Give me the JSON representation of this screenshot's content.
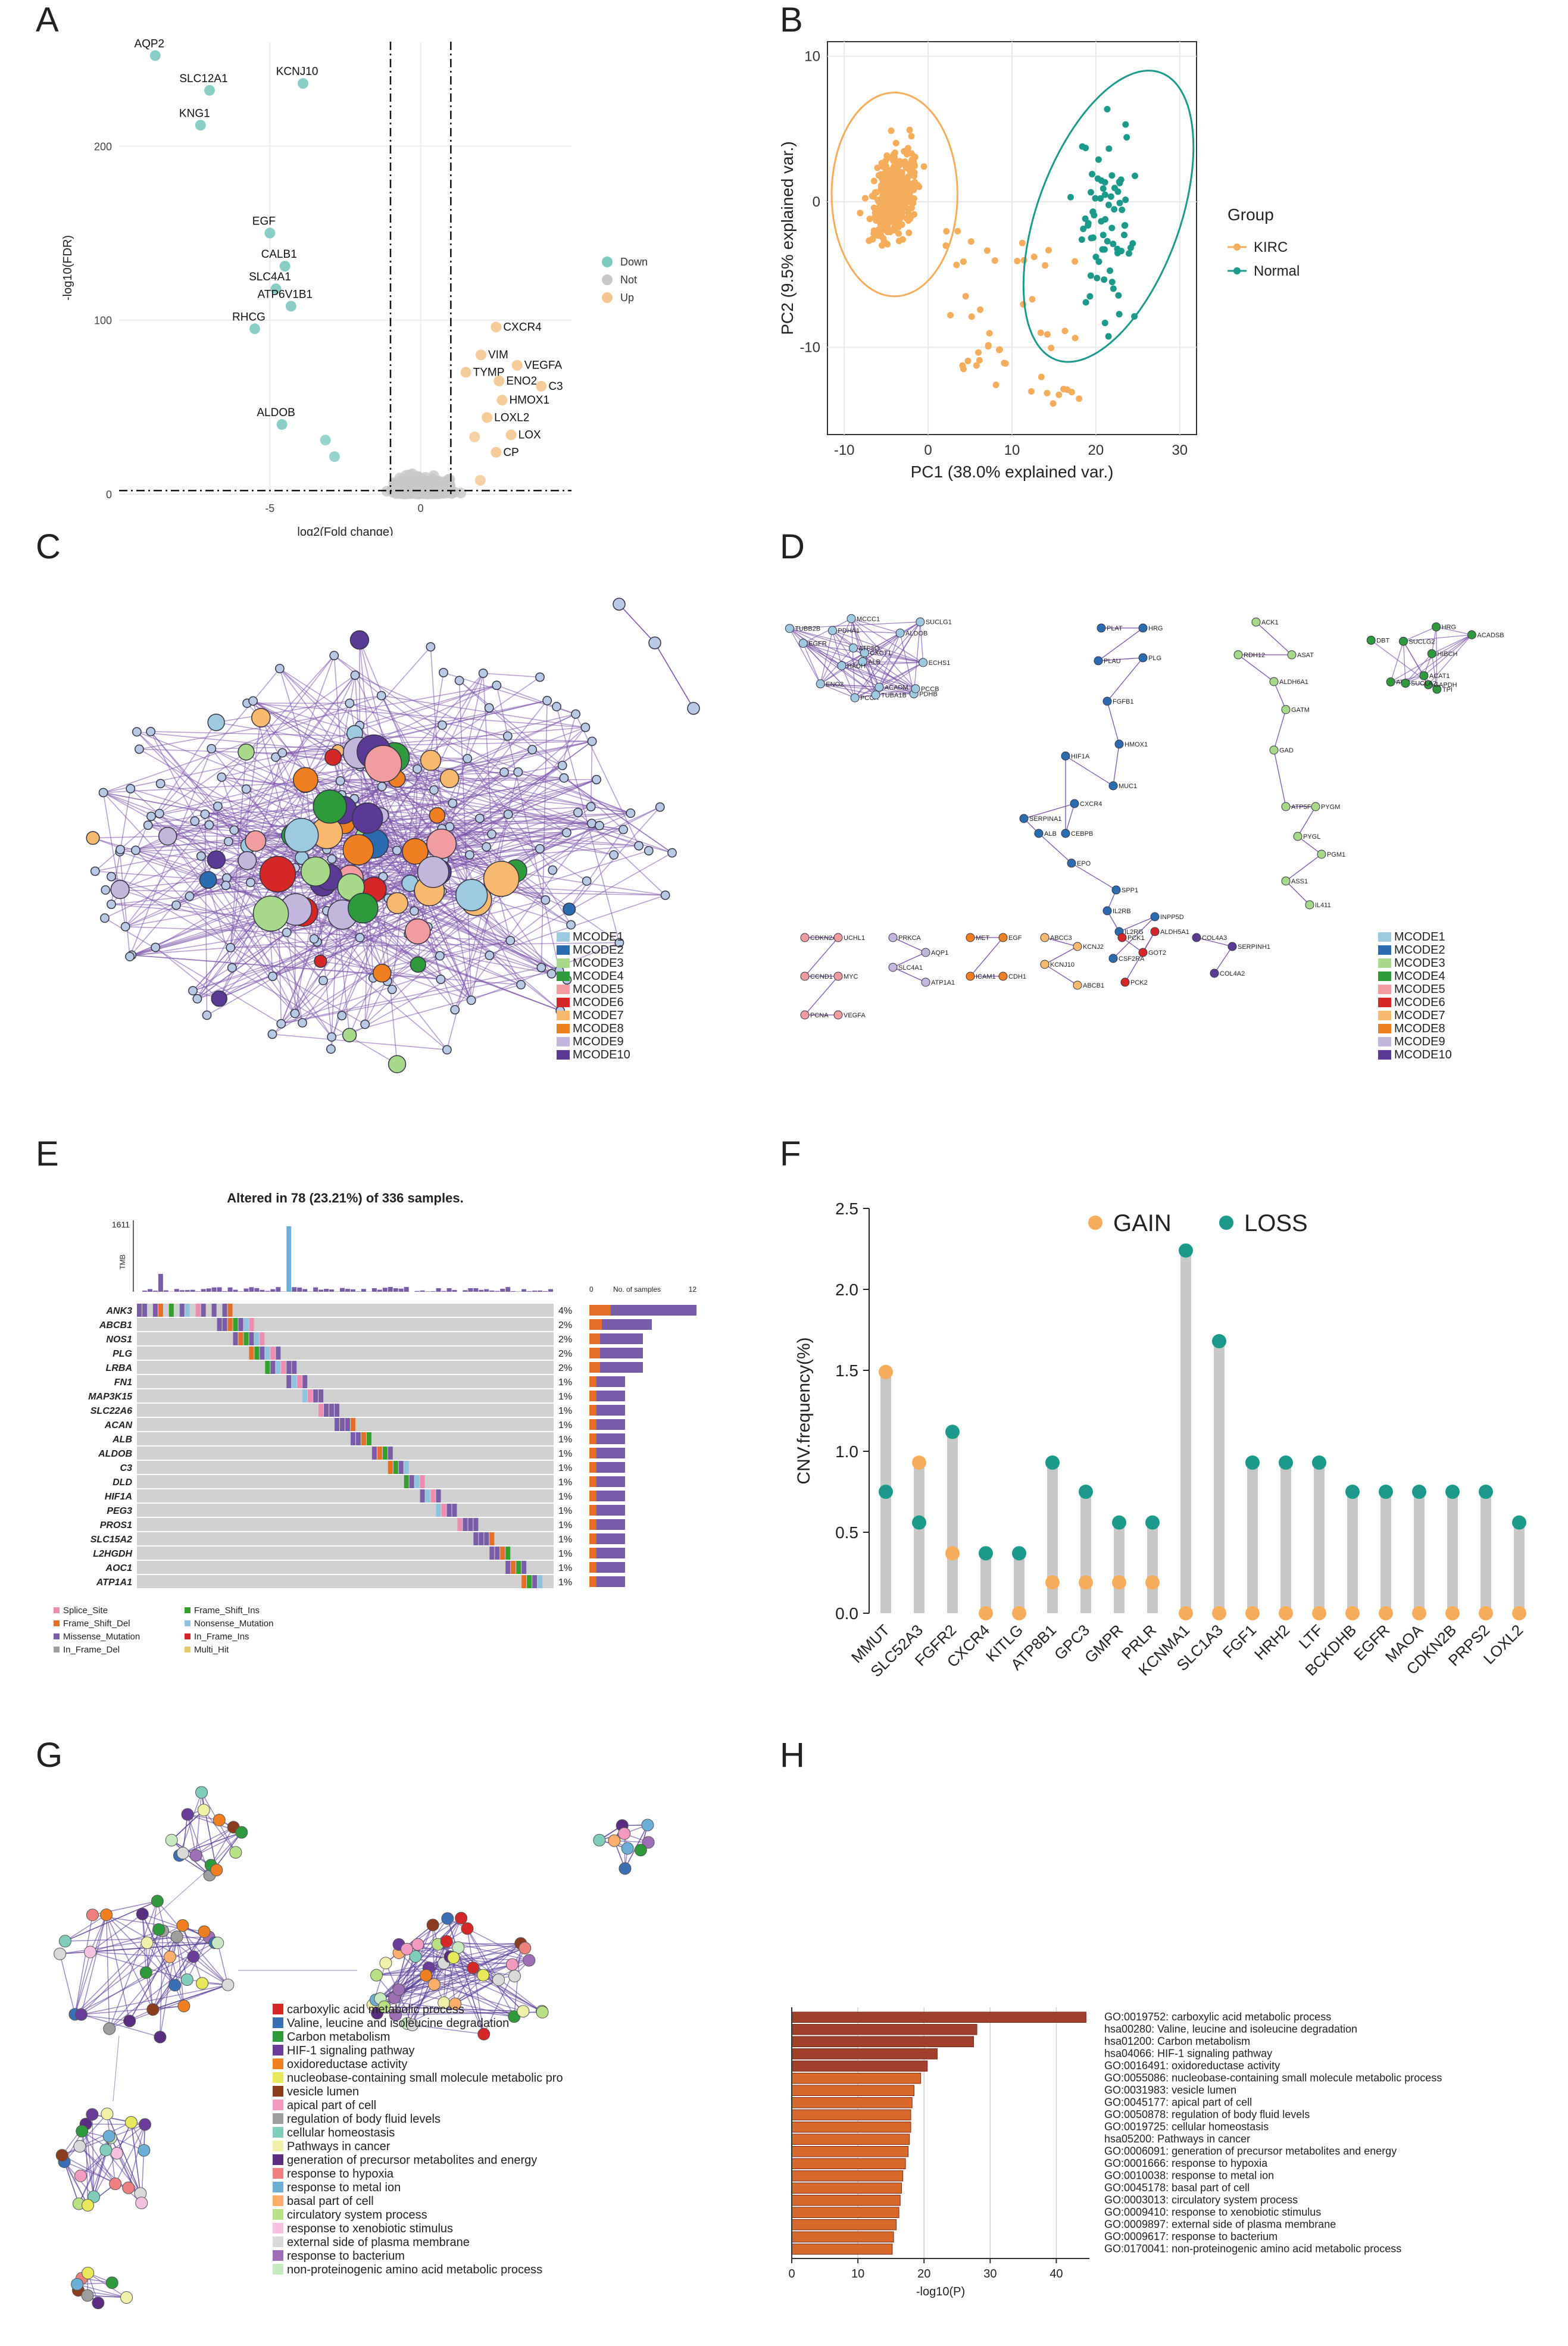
{
  "panels": {
    "a": "A",
    "b": "B",
    "c": "C",
    "d": "D",
    "e": "E",
    "f": "F",
    "g": "G",
    "h": "H"
  },
  "chart_data": [
    {
      "id": "A",
      "type": "scatter",
      "title": "",
      "xlabel": "log2(Fold change)",
      "ylabel": "-log10(FDR)",
      "xlim": [
        -10,
        5
      ],
      "ylim": [
        0,
        260
      ],
      "xticks": [
        -5,
        0
      ],
      "yticks": [
        0,
        100,
        200
      ],
      "legend": [
        "Down",
        "Not",
        "Up"
      ],
      "colors": {
        "Down": "#7cc9c0",
        "Not": "#c8c8c8",
        "Up": "#f5c58f"
      },
      "threshold_x": [
        -1,
        1
      ],
      "threshold_y": 2,
      "labeled_points": [
        {
          "label": "AQP2",
          "x": -8.8,
          "y": 252,
          "group": "Down"
        },
        {
          "label": "SLC12A1",
          "x": -7.0,
          "y": 232,
          "group": "Down"
        },
        {
          "label": "KCNJ10",
          "x": -3.9,
          "y": 236,
          "group": "Down"
        },
        {
          "label": "KNG1",
          "x": -7.3,
          "y": 212,
          "group": "Down"
        },
        {
          "label": "EGF",
          "x": -5.0,
          "y": 150,
          "group": "Down"
        },
        {
          "label": "CALB1",
          "x": -4.5,
          "y": 131,
          "group": "Down"
        },
        {
          "label": "SLC4A1",
          "x": -4.8,
          "y": 118,
          "group": "Down"
        },
        {
          "label": "ATP6V1B1",
          "x": -4.3,
          "y": 108,
          "group": "Down"
        },
        {
          "label": "RHCG",
          "x": -5.5,
          "y": 95,
          "group": "Down"
        },
        {
          "label": "ALDOB",
          "x": -4.6,
          "y": 40,
          "group": "Down"
        },
        {
          "label": "CXCR4",
          "x": 2.5,
          "y": 96,
          "group": "Up"
        },
        {
          "label": "VIM",
          "x": 2.0,
          "y": 80,
          "group": "Up"
        },
        {
          "label": "VEGFA",
          "x": 3.2,
          "y": 74,
          "group": "Up"
        },
        {
          "label": "TYMP",
          "x": 1.5,
          "y": 70,
          "group": "Up"
        },
        {
          "label": "ENO2",
          "x": 2.6,
          "y": 65,
          "group": "Up"
        },
        {
          "label": "C3",
          "x": 4.0,
          "y": 62,
          "group": "Up"
        },
        {
          "label": "HMOX1",
          "x": 2.7,
          "y": 54,
          "group": "Up"
        },
        {
          "label": "LOXL2",
          "x": 2.2,
          "y": 44,
          "group": "Up"
        },
        {
          "label": "LOX",
          "x": 3.0,
          "y": 34,
          "group": "Up"
        },
        {
          "label": "CP",
          "x": 2.5,
          "y": 24,
          "group": "Up"
        }
      ]
    },
    {
      "id": "B",
      "type": "scatter",
      "title": "",
      "xlabel": "PC1 (38.0% explained var.)",
      "ylabel": "PC2 (9.5% explained var.)",
      "xlim": [
        -12,
        32
      ],
      "ylim": [
        -16,
        11
      ],
      "xticks": [
        -10,
        0,
        10,
        20,
        30
      ],
      "yticks": [
        -10,
        0,
        10
      ],
      "legend_title": "Group",
      "legend": [
        "KIRC",
        "Normal"
      ],
      "colors": {
        "KIRC": "#f5ad5b",
        "Normal": "#1b998b"
      },
      "ellipses": [
        {
          "group": "KIRC",
          "cx": -4,
          "cy": 0.5,
          "rx": 7.5,
          "ry": 7
        },
        {
          "group": "Normal",
          "cx": 21.5,
          "cy": -1,
          "rx": 8.5,
          "ry": 10.5
        }
      ]
    },
    {
      "id": "E",
      "type": "heatmap",
      "title": "Altered in 78 (23.21%) of 336 samples.",
      "tmb_label": "TMB",
      "tmb_max": "1611",
      "samples_label": "No. of samples",
      "samples_ticks": [
        "0",
        "12"
      ],
      "genes": [
        "ANK3",
        "ABCB1",
        "NOS1",
        "PLG",
        "LRBA",
        "FN1",
        "MAP3K15",
        "SLC22A6",
        "ACAN",
        "ALB",
        "ALDOB",
        "C3",
        "DLD",
        "HIF1A",
        "PEG3",
        "PROS1",
        "SLC15A2",
        "L2HGDH",
        "AOC1",
        "ATP1A1"
      ],
      "percents": [
        "4%",
        "2%",
        "2%",
        "2%",
        "2%",
        "1%",
        "1%",
        "1%",
        "1%",
        "1%",
        "1%",
        "1%",
        "1%",
        "1%",
        "1%",
        "1%",
        "1%",
        "1%",
        "1%",
        "1%"
      ],
      "counts": [
        12,
        7,
        6,
        6,
        6,
        4,
        4,
        4,
        4,
        4,
        4,
        4,
        4,
        4,
        4,
        4,
        4,
        4,
        4,
        4
      ],
      "legend": [
        "Splice_Site",
        "Frame_Shift_Ins",
        "Frame_Shift_Del",
        "Nonsense_Mutation",
        "Missense_Mutation",
        "In_Frame_Ins",
        "In_Frame_Del",
        "Multi_Hit"
      ],
      "legend_colors": [
        "#f08cb0",
        "#33a02c",
        "#e66f28",
        "#8fc4e0",
        "#7a5da8",
        "#d62728",
        "#9e9e9e",
        "#e3c96b"
      ]
    },
    {
      "id": "F",
      "type": "scatter",
      "title": "",
      "ylabel": "CNV.frequency(%)",
      "ylim": [
        0,
        2.5
      ],
      "yticks": [
        0.0,
        0.5,
        1.0,
        1.5,
        2.0,
        2.5
      ],
      "legend": [
        "GAIN",
        "LOSS"
      ],
      "colors": {
        "GAIN": "#f5ad5b",
        "LOSS": "#1b998b"
      },
      "categories": [
        "MMUT",
        "SLC52A3",
        "FGFR2",
        "CXCR4",
        "KITLG",
        "ATP8B1",
        "GPC3",
        "GMPR",
        "PRLR",
        "KCNMA1",
        "SLC1A3",
        "FGF1",
        "HRH2",
        "LTF",
        "BCKDHB",
        "EGFR",
        "MAOA",
        "CDKN2B",
        "PRPS2",
        "LOXL2"
      ],
      "series": [
        {
          "name": "GAIN",
          "values": [
            1.49,
            0.93,
            0.37,
            0,
            0,
            0.19,
            0.19,
            0.19,
            0.19,
            0,
            0,
            0,
            0,
            0,
            0,
            0,
            0,
            0,
            0,
            0
          ]
        },
        {
          "name": "LOSS",
          "values": [
            0.75,
            0.56,
            1.12,
            0.37,
            0.37,
            0.93,
            0.75,
            0.56,
            0.56,
            2.24,
            1.68,
            0.93,
            0.93,
            0.93,
            0.75,
            0.75,
            0.75,
            0.75,
            0.75,
            0.56
          ]
        }
      ]
    },
    {
      "id": "H",
      "type": "bar",
      "title": "",
      "xlabel": "-log10(P)",
      "xlim": [
        0,
        45
      ],
      "xticks": [
        0,
        10,
        20,
        30,
        40
      ],
      "categories": [
        "GO:0019752: carboxylic acid metabolic process",
        "hsa00280: Valine, leucine and isoleucine degradation",
        "hsa01200: Carbon metabolism",
        "hsa04066: HIF-1 signaling pathway",
        "GO:0016491: oxidoreductase activity",
        "GO:0055086: nucleobase-containing small molecule metabolic process",
        "GO:0031983: vesicle lumen",
        "GO:0045177: apical part of cell",
        "GO:0050878: regulation of body fluid levels",
        "GO:0019725: cellular homeostasis",
        "hsa05200: Pathways in cancer",
        "GO:0006091: generation of precursor metabolites and energy",
        "GO:0001666: response to hypoxia",
        "GO:0010038: response to metal ion",
        "GO:0045178: basal part of cell",
        "GO:0003013: circulatory system process",
        "GO:0009410: response to xenobiotic stimulus",
        "GO:0009897: external side of plasma membrane",
        "GO:0009617: response to bacterium",
        "GO:0170041: non-proteinogenic amino acid metabolic process"
      ],
      "values": [
        44.5,
        28,
        27.5,
        22,
        20.5,
        19.5,
        18.5,
        18.2,
        18,
        18,
        17.8,
        17.6,
        17.2,
        16.8,
        16.6,
        16.4,
        16.2,
        15.8,
        15.4,
        15.2
      ]
    }
  ],
  "mcode_legend_c": [
    "MCODE1",
    "MCODE2",
    "MCODE3",
    "MCODE4",
    "MCODE5",
    "MCODE6",
    "MCODE7",
    "MCODE8",
    "MCODE9",
    "MCODE10"
  ],
  "mcode_legend_d": [
    "MCODE1",
    "MCODE2",
    "MCODE3",
    "MCODE4",
    "MCODE5",
    "MCODE6",
    "MCODE7",
    "MCODE8",
    "MCODE9",
    "MCODE10"
  ],
  "mcode_colors": [
    "#9ecae1",
    "#2b6cb0",
    "#a6d98a",
    "#2e9a3c",
    "#f29ca0",
    "#d62728",
    "#f7b96e",
    "#ef7f21",
    "#c3b6dd",
    "#5b3a96"
  ],
  "g_legend": [
    "carboxylic acid metabolic process",
    "Valine, leucine and isoleucine degradation",
    "Carbon metabolism",
    "HIF-1 signaling pathway",
    "oxidoreductase activity",
    "nucleobase-containing small molecule metabolic pro",
    "vesicle lumen",
    "apical part of cell",
    "regulation of body fluid levels",
    "cellular homeostasis",
    "Pathways in cancer",
    "generation of precursor metabolites and energy",
    "response to hypoxia",
    "response to metal ion",
    "basal part of cell",
    "circulatory system process",
    "response to xenobiotic stimulus",
    "external side of plasma membrane",
    "response to bacterium",
    "non-proteinogenic amino acid metabolic process"
  ],
  "g_colors": [
    "#d62728",
    "#3a6fb5",
    "#2e9a3c",
    "#6a3d9a",
    "#ef7f21",
    "#e8e85a",
    "#8c3b1f",
    "#f49ac1",
    "#9e9e9e",
    "#7fcdbb",
    "#f0f0a8",
    "#5a2d82",
    "#f08080",
    "#6baed6",
    "#fdae6b",
    "#b8e186",
    "#f4c2e0",
    "#d9d9d9",
    "#9e6fb7",
    "#c7e9c0"
  ],
  "d_nodes": {
    "cluster1": [
      "TUBB2B",
      "EGFR",
      "SUCLG1",
      "CXCT1",
      "ALDOB",
      "ECHS1",
      "ACADM",
      "ALB",
      "PCCA",
      "PDHB",
      "HADH",
      "TUBA1B",
      "ATP5O",
      "MCCC1",
      "ENO2",
      "PDHA1",
      "PCCB"
    ],
    "cluster2": [
      "PLAT",
      "HRG",
      "PLAU",
      "PLG",
      "FGFB1",
      "HMOX1",
      "MUC1",
      "HIF1A",
      "CEBPB",
      "CXCR4",
      "SERPINA1",
      "ALB",
      "EPO",
      "SPP1",
      "IL2RB",
      "IL2RG",
      "INPP5D",
      "CSF2RA"
    ],
    "cluster3": [
      "ACK1",
      "ASAT",
      "RDH12",
      "ALDH6A1",
      "GATM",
      "GAD",
      "ATP5F1A",
      "PYGM",
      "PYGL",
      "PGM1",
      "ASS1",
      "IL411"
    ],
    "cluster4": [
      "ACADSB",
      "HRG",
      "AUH",
      "TPI",
      "ACAT1",
      "HIBCH",
      "GAPDH",
      "SUCLG2",
      "DBT",
      "SUCLA2"
    ],
    "small": [
      "CDKN2A",
      "UCHL1",
      "CCND1",
      "MYC",
      "PCNA",
      "VEGFA",
      "PRKCA",
      "AQP1",
      "SLC4A1",
      "ATP1A1",
      "MET",
      "EGF",
      "ICAM1",
      "CDH1",
      "ABCC3",
      "KCNJ2",
      "KCNJ10",
      "ABCB1",
      "PCK1",
      "GOT2",
      "ALDH5A1",
      "PCK2",
      "COL4A3",
      "SERPINH1",
      "COL4A2"
    ]
  }
}
